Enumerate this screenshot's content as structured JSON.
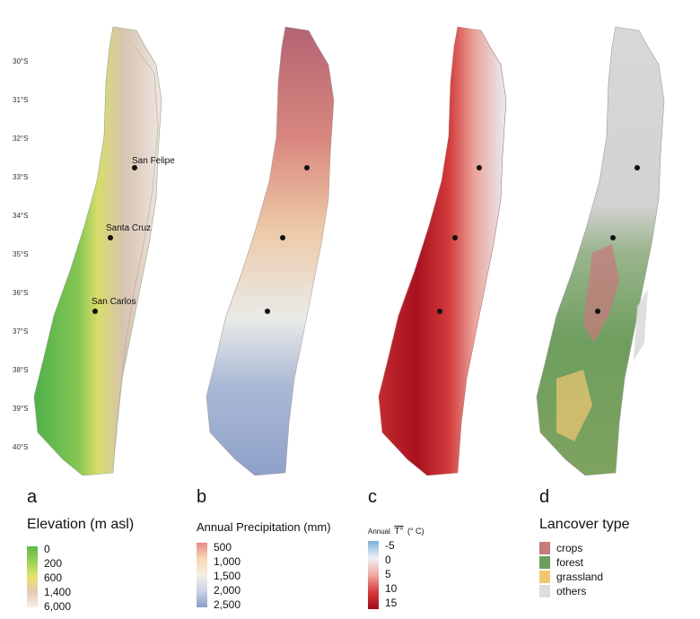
{
  "latitudes": [
    "30°S",
    "31°S",
    "32°S",
    "33°S",
    "34°S",
    "35°S",
    "36°S",
    "37°S",
    "38°S",
    "39°S",
    "40°S"
  ],
  "cities": [
    "San Felipe",
    "Santa Cruz",
    "San Carlos"
  ],
  "panels": [
    {
      "letter": "a",
      "title": "Elevation (m asl)",
      "labels": [
        "0",
        "200",
        "600",
        "1,400",
        "6,000"
      ],
      "colors": [
        "#5dbb4a",
        "#9ccf55",
        "#e8e46a",
        "#e2cbb5",
        "#f4efee"
      ]
    },
    {
      "letter": "b",
      "title": "Annual Precipitation (mm)",
      "labels": [
        "500",
        "1,000",
        "1,500",
        "2,000",
        "2,500"
      ],
      "colors": [
        "#e88a8a",
        "#f7d9b3",
        "#f4efe2",
        "#c9d4e6",
        "#8a9cc8"
      ]
    },
    {
      "letter": "c",
      "title_small": "Annual",
      "title_t": "T°",
      "title_unit": "(° C)",
      "labels": [
        "-5",
        "0",
        "5",
        "10",
        "15"
      ],
      "colors": [
        "#7fb0d8",
        "#eef2f6",
        "#f0a9a0",
        "#d63a3a",
        "#9e0d1d"
      ]
    },
    {
      "letter": "d",
      "title": "Lancover type",
      "labels": [
        "crops",
        "forest",
        "grassland",
        "others"
      ],
      "colors": [
        "#c67b7c",
        "#6e9e5e",
        "#f1c872",
        "#dcdcdc"
      ]
    }
  ]
}
